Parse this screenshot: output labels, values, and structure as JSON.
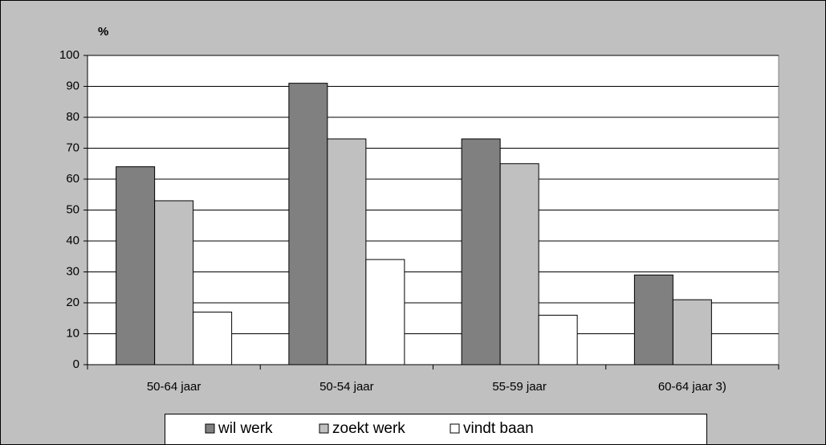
{
  "chart_data": {
    "type": "bar",
    "y_label": "%",
    "categories": [
      "50-64 jaar",
      "50-54 jaar",
      "55-59 jaar",
      "60-64 jaar 3)"
    ],
    "series": [
      {
        "name": "wil werk",
        "color": "#808080",
        "values": [
          64,
          91,
          73,
          29
        ]
      },
      {
        "name": "zoekt werk",
        "color": "#c0c0c0",
        "values": [
          53,
          73,
          65,
          21
        ]
      },
      {
        "name": "vindt baan",
        "color": "#ffffff",
        "values": [
          17,
          34,
          16,
          null
        ]
      }
    ],
    "ylim": [
      0,
      100
    ],
    "yticks": [
      0,
      10,
      20,
      30,
      40,
      50,
      60,
      70,
      80,
      90,
      100
    ],
    "grid": true,
    "legend": "bottom"
  }
}
